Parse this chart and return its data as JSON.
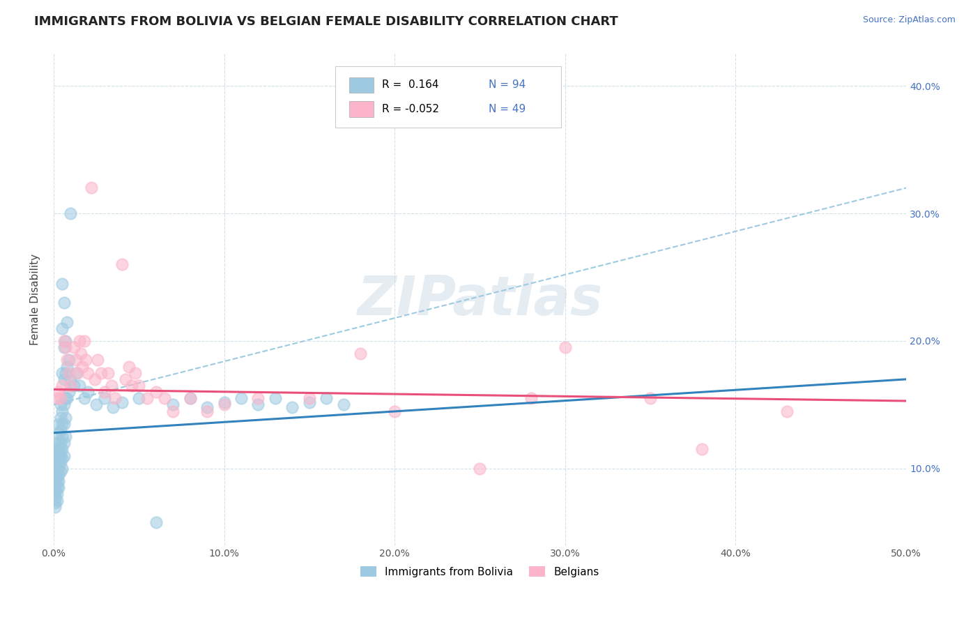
{
  "title": "IMMIGRANTS FROM BOLIVIA VS BELGIAN FEMALE DISABILITY CORRELATION CHART",
  "source": "Source: ZipAtlas.com",
  "ylabel": "Female Disability",
  "xlim": [
    0.0,
    0.5
  ],
  "ylim": [
    0.04,
    0.425
  ],
  "xticks": [
    0.0,
    0.1,
    0.2,
    0.3,
    0.4,
    0.5
  ],
  "yticks": [
    0.1,
    0.2,
    0.3,
    0.4
  ],
  "xticklabels": [
    "0.0%",
    "10.0%",
    "20.0%",
    "30.0%",
    "40.0%",
    "50.0%"
  ],
  "yticklabels": [
    "10.0%",
    "20.0%",
    "30.0%",
    "40.0%"
  ],
  "watermark": "ZIPatlas",
  "blue_color": "#9ecae1",
  "pink_color": "#fbb4c9",
  "blue_line_color": "#3182bd",
  "pink_line_color": "#e8507a",
  "dash_line_color": "#9ecae1",
  "title_fontsize": 13,
  "axis_label_fontsize": 11,
  "tick_fontsize": 10,
  "blue_scatter": [
    [
      0.001,
      0.115
    ],
    [
      0.001,
      0.112
    ],
    [
      0.001,
      0.109
    ],
    [
      0.001,
      0.106
    ],
    [
      0.001,
      0.103
    ],
    [
      0.001,
      0.1
    ],
    [
      0.001,
      0.097
    ],
    [
      0.001,
      0.094
    ],
    [
      0.001,
      0.091
    ],
    [
      0.001,
      0.088
    ],
    [
      0.001,
      0.085
    ],
    [
      0.001,
      0.082
    ],
    [
      0.001,
      0.079
    ],
    [
      0.001,
      0.076
    ],
    [
      0.001,
      0.073
    ],
    [
      0.001,
      0.07
    ],
    [
      0.002,
      0.12
    ],
    [
      0.002,
      0.115
    ],
    [
      0.002,
      0.11
    ],
    [
      0.002,
      0.105
    ],
    [
      0.002,
      0.1
    ],
    [
      0.002,
      0.095
    ],
    [
      0.002,
      0.09
    ],
    [
      0.002,
      0.085
    ],
    [
      0.002,
      0.08
    ],
    [
      0.002,
      0.075
    ],
    [
      0.003,
      0.135
    ],
    [
      0.003,
      0.128
    ],
    [
      0.003,
      0.12
    ],
    [
      0.003,
      0.115
    ],
    [
      0.003,
      0.11
    ],
    [
      0.003,
      0.105
    ],
    [
      0.003,
      0.1
    ],
    [
      0.003,
      0.095
    ],
    [
      0.003,
      0.09
    ],
    [
      0.003,
      0.085
    ],
    [
      0.004,
      0.15
    ],
    [
      0.004,
      0.14
    ],
    [
      0.004,
      0.13
    ],
    [
      0.004,
      0.12
    ],
    [
      0.004,
      0.115
    ],
    [
      0.004,
      0.11
    ],
    [
      0.004,
      0.105
    ],
    [
      0.004,
      0.098
    ],
    [
      0.005,
      0.245
    ],
    [
      0.005,
      0.21
    ],
    [
      0.005,
      0.175
    ],
    [
      0.005,
      0.145
    ],
    [
      0.005,
      0.135
    ],
    [
      0.005,
      0.125
    ],
    [
      0.005,
      0.115
    ],
    [
      0.005,
      0.108
    ],
    [
      0.005,
      0.1
    ],
    [
      0.006,
      0.23
    ],
    [
      0.006,
      0.195
    ],
    [
      0.006,
      0.17
    ],
    [
      0.006,
      0.15
    ],
    [
      0.006,
      0.135
    ],
    [
      0.006,
      0.12
    ],
    [
      0.006,
      0.11
    ],
    [
      0.007,
      0.2
    ],
    [
      0.007,
      0.175
    ],
    [
      0.007,
      0.155
    ],
    [
      0.007,
      0.14
    ],
    [
      0.007,
      0.125
    ],
    [
      0.008,
      0.215
    ],
    [
      0.008,
      0.18
    ],
    [
      0.008,
      0.155
    ],
    [
      0.009,
      0.185
    ],
    [
      0.009,
      0.16
    ],
    [
      0.01,
      0.3
    ],
    [
      0.01,
      0.17
    ],
    [
      0.012,
      0.165
    ],
    [
      0.013,
      0.175
    ],
    [
      0.015,
      0.165
    ],
    [
      0.018,
      0.155
    ],
    [
      0.02,
      0.16
    ],
    [
      0.025,
      0.15
    ],
    [
      0.03,
      0.155
    ],
    [
      0.035,
      0.148
    ],
    [
      0.04,
      0.152
    ],
    [
      0.05,
      0.155
    ],
    [
      0.06,
      0.058
    ],
    [
      0.07,
      0.15
    ],
    [
      0.08,
      0.155
    ],
    [
      0.09,
      0.148
    ],
    [
      0.1,
      0.152
    ],
    [
      0.11,
      0.155
    ],
    [
      0.12,
      0.15
    ],
    [
      0.13,
      0.155
    ],
    [
      0.14,
      0.148
    ],
    [
      0.15,
      0.152
    ],
    [
      0.16,
      0.155
    ],
    [
      0.17,
      0.15
    ]
  ],
  "pink_scatter": [
    [
      0.002,
      0.155
    ],
    [
      0.003,
      0.16
    ],
    [
      0.004,
      0.155
    ],
    [
      0.005,
      0.165
    ],
    [
      0.006,
      0.2
    ],
    [
      0.007,
      0.195
    ],
    [
      0.008,
      0.185
    ],
    [
      0.009,
      0.175
    ],
    [
      0.01,
      0.165
    ],
    [
      0.012,
      0.195
    ],
    [
      0.013,
      0.185
    ],
    [
      0.014,
      0.175
    ],
    [
      0.015,
      0.2
    ],
    [
      0.016,
      0.19
    ],
    [
      0.017,
      0.18
    ],
    [
      0.018,
      0.2
    ],
    [
      0.019,
      0.185
    ],
    [
      0.02,
      0.175
    ],
    [
      0.022,
      0.32
    ],
    [
      0.024,
      0.17
    ],
    [
      0.026,
      0.185
    ],
    [
      0.028,
      0.175
    ],
    [
      0.03,
      0.16
    ],
    [
      0.032,
      0.175
    ],
    [
      0.034,
      0.165
    ],
    [
      0.036,
      0.155
    ],
    [
      0.04,
      0.26
    ],
    [
      0.042,
      0.17
    ],
    [
      0.044,
      0.18
    ],
    [
      0.046,
      0.165
    ],
    [
      0.048,
      0.175
    ],
    [
      0.05,
      0.165
    ],
    [
      0.055,
      0.155
    ],
    [
      0.06,
      0.16
    ],
    [
      0.065,
      0.155
    ],
    [
      0.07,
      0.145
    ],
    [
      0.08,
      0.155
    ],
    [
      0.09,
      0.145
    ],
    [
      0.1,
      0.15
    ],
    [
      0.12,
      0.155
    ],
    [
      0.15,
      0.155
    ],
    [
      0.18,
      0.19
    ],
    [
      0.2,
      0.145
    ],
    [
      0.25,
      0.1
    ],
    [
      0.28,
      0.155
    ],
    [
      0.3,
      0.195
    ],
    [
      0.35,
      0.155
    ],
    [
      0.38,
      0.115
    ],
    [
      0.43,
      0.145
    ]
  ],
  "blue_trendline": [
    [
      0.0,
      0.128
    ],
    [
      0.5,
      0.17
    ]
  ],
  "pink_trendline": [
    [
      0.0,
      0.162
    ],
    [
      0.5,
      0.153
    ]
  ],
  "dash_refline": [
    [
      0.0,
      0.15
    ],
    [
      0.5,
      0.32
    ]
  ]
}
